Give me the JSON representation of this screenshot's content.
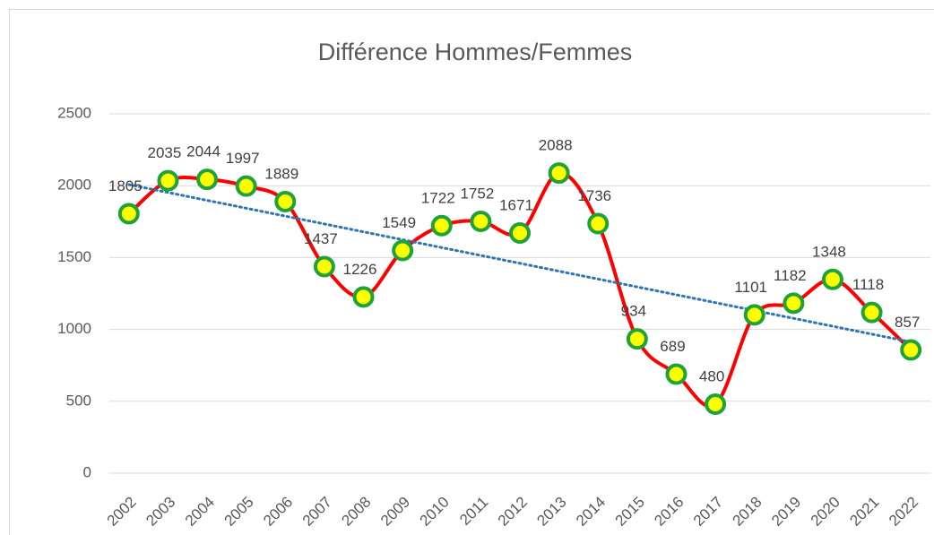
{
  "chart_data": {
    "type": "line",
    "title": "Différence Hommes/Femmes",
    "categories": [
      "2002",
      "2003",
      "2004",
      "2005",
      "2006",
      "2007",
      "2008",
      "2009",
      "2010",
      "2011",
      "2012",
      "2013",
      "2014",
      "2015",
      "2016",
      "2017",
      "2018",
      "2019",
      "2020",
      "2021",
      "2022"
    ],
    "series": [
      {
        "name": "Différence",
        "color": "#ff0000",
        "marker_fill": "#ffff00",
        "marker_edge": "#1ea33a",
        "values": [
          1805,
          2035,
          2044,
          1997,
          1889,
          1437,
          1226,
          1549,
          1722,
          1752,
          1671,
          2088,
          1736,
          934,
          689,
          480,
          1101,
          1182,
          1348,
          1118,
          857
        ]
      }
    ],
    "trendline": {
      "kind": "linear",
      "color": "#2e75b6"
    },
    "ylim": [
      0,
      2500
    ],
    "yticks": [
      0,
      500,
      1000,
      1500,
      2000,
      2500
    ],
    "grid": true,
    "smooth": true
  }
}
